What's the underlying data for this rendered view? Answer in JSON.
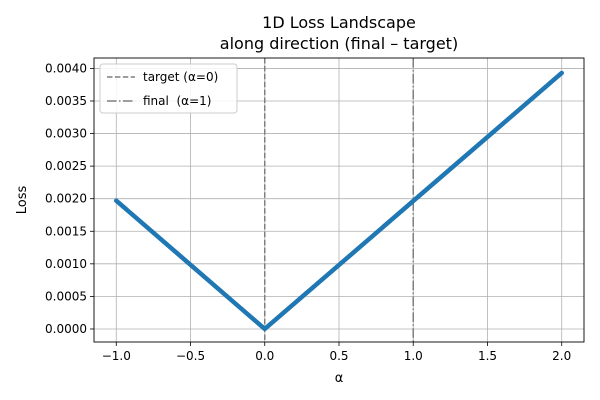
{
  "chart_data": {
    "type": "line",
    "title_line1": "1D Loss Landscape",
    "title_line2": "along direction (final – target)",
    "xlabel": "α",
    "ylabel": "Loss",
    "xlim": [
      -1.15,
      2.15
    ],
    "ylim": [
      -0.0002,
      0.00416
    ],
    "xticks": [
      -1.0,
      -0.5,
      0.0,
      0.5,
      1.0,
      1.5,
      2.0
    ],
    "xtick_labels": [
      "−1.0",
      "−0.5",
      "0.0",
      "0.5",
      "1.0",
      "1.5",
      "2.0"
    ],
    "yticks": [
      0.0,
      0.0005,
      0.001,
      0.0015,
      0.002,
      0.0025,
      0.003,
      0.0035,
      0.004
    ],
    "ytick_labels": [
      "0.0000",
      "0.0005",
      "0.0010",
      "0.0015",
      "0.0020",
      "0.0025",
      "0.0030",
      "0.0035",
      "0.0040"
    ],
    "grid": true,
    "legend_placement": "top-left",
    "series": [
      {
        "x": [
          -1.0,
          0.0,
          2.0
        ],
        "y": [
          0.00197,
          0.0,
          0.00393
        ],
        "color": "#1f77b4"
      }
    ],
    "vlines": [
      {
        "x": 0.0,
        "label": "target (α=0)",
        "style": "dashed",
        "color": "#7f7f7f"
      },
      {
        "x": 1.0,
        "label": "final  (α=1)",
        "style": "dashdot",
        "color": "#7f7f7f"
      }
    ]
  }
}
